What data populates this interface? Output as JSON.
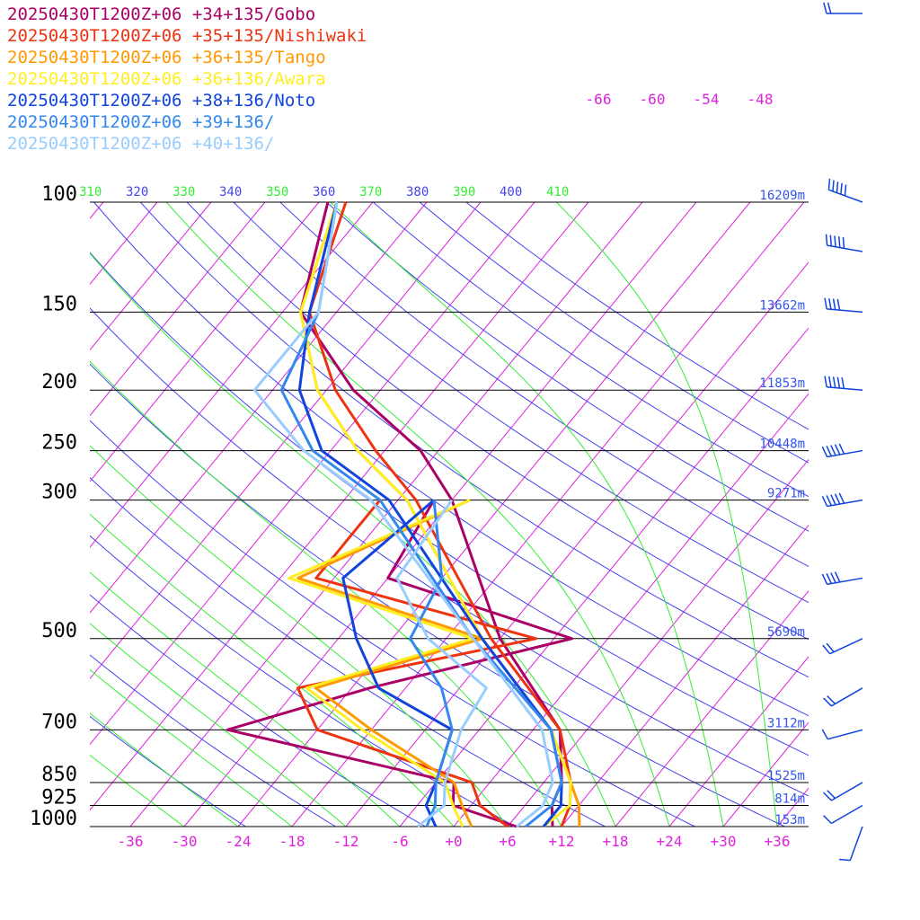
{
  "chart_data": {
    "type": "line",
    "subtype": "skew-T log-P sounding",
    "title": "",
    "xlabel": "",
    "ylabel": "",
    "pressure_levels": [
      100,
      150,
      200,
      250,
      300,
      500,
      700,
      850,
      925,
      1000
    ],
    "pressure_labels": [
      "100",
      "150",
      "200",
      "250",
      "300",
      "500",
      "700",
      "850",
      "925",
      "1000"
    ],
    "height_labels": [
      {
        "p": 100,
        "label": "16209m"
      },
      {
        "p": 150,
        "label": "13662m"
      },
      {
        "p": 200,
        "label": "11853m"
      },
      {
        "p": 250,
        "label": "10448m"
      },
      {
        "p": 300,
        "label": "9271m"
      },
      {
        "p": 500,
        "label": "5690m"
      },
      {
        "p": 700,
        "label": "3112m"
      },
      {
        "p": 850,
        "label": "1525m"
      },
      {
        "p": 925,
        "label": "814m"
      },
      {
        "p": 1000,
        "label": "153m"
      }
    ],
    "temp_ticks": [
      -36,
      -30,
      -24,
      -18,
      -12,
      -6,
      0,
      6,
      12,
      18,
      24,
      30,
      36
    ],
    "temp_tick_labels": [
      "-36",
      "-30",
      "-24",
      "-18",
      "-12",
      "-6",
      "+0",
      "+6",
      "+12",
      "+18",
      "+24",
      "+30",
      "+36"
    ],
    "isotherm_labels_top": [
      "-66",
      "-60",
      "-54",
      "-48"
    ],
    "theta_labels": [
      "310",
      "320",
      "330",
      "340",
      "350",
      "360",
      "370",
      "380",
      "390",
      "400",
      "410"
    ],
    "xlim": [
      -40,
      40
    ],
    "ylim": [
      1000,
      100
    ],
    "colors": {
      "isotherm": "#dd22dd",
      "adiabat": "#4444ee",
      "moist": "#33ee33",
      "isobar": "#000000",
      "height": "#3355ee",
      "wind": "#1144dd"
    },
    "series": [
      {
        "name": "20250430T1200Z+06 +34+135/Gobo",
        "color": "#aa0066",
        "temp": [
          [
            1000,
            11
          ],
          [
            925,
            9
          ],
          [
            850,
            8
          ],
          [
            700,
            3
          ],
          [
            500,
            -12
          ],
          [
            300,
            -30
          ],
          [
            250,
            -38
          ],
          [
            200,
            -51
          ],
          [
            150,
            -64
          ],
          [
            100,
            -71
          ]
        ],
        "dewpoint": [
          [
            1000,
            7
          ],
          [
            925,
            -2
          ],
          [
            850,
            -4
          ],
          [
            700,
            -34
          ],
          [
            600,
            -22
          ],
          [
            500,
            -4
          ],
          [
            400,
            -30
          ],
          [
            300,
            -32
          ]
        ]
      },
      {
        "name": "20250430T1200Z+06 +35+135/Nishiwaki",
        "color": "#ee3311",
        "temp": [
          [
            1000,
            12
          ],
          [
            925,
            11
          ],
          [
            850,
            9
          ],
          [
            700,
            3
          ],
          [
            500,
            -13
          ],
          [
            300,
            -34
          ],
          [
            250,
            -43
          ],
          [
            200,
            -53
          ],
          [
            150,
            -63
          ],
          [
            100,
            -69
          ]
        ],
        "dewpoint": [
          [
            1000,
            6
          ],
          [
            925,
            1
          ],
          [
            850,
            -2
          ],
          [
            700,
            -24
          ],
          [
            600,
            -30
          ],
          [
            500,
            -8
          ],
          [
            400,
            -38
          ],
          [
            300,
            -38
          ]
        ]
      },
      {
        "name": "20250430T1200Z+06 +36+135/Tango",
        "color": "#ff9900",
        "temp": [
          [
            1000,
            14
          ],
          [
            925,
            12
          ],
          [
            850,
            9
          ],
          [
            700,
            2
          ],
          [
            500,
            -14
          ],
          [
            300,
            -35
          ],
          [
            250,
            -45
          ],
          [
            200,
            -55
          ],
          [
            150,
            -64
          ],
          [
            100,
            -70
          ]
        ],
        "dewpoint": [
          [
            1000,
            2
          ],
          [
            925,
            -1
          ],
          [
            850,
            -4
          ],
          [
            700,
            -18
          ],
          [
            600,
            -28
          ],
          [
            500,
            -14
          ],
          [
            400,
            -40
          ],
          [
            300,
            -28
          ]
        ]
      },
      {
        "name": "20250430T1200Z+06 +36+136/Awara",
        "color": "#ffee22",
        "temp": [
          [
            1000,
            10
          ],
          [
            925,
            11
          ],
          [
            850,
            9
          ],
          [
            700,
            2
          ],
          [
            500,
            -14
          ],
          [
            300,
            -35
          ],
          [
            250,
            -45
          ],
          [
            200,
            -55
          ],
          [
            150,
            -64
          ],
          [
            100,
            -70
          ]
        ],
        "dewpoint": [
          [
            1000,
            1
          ],
          [
            925,
            -2
          ],
          [
            850,
            -5
          ],
          [
            700,
            -19
          ],
          [
            600,
            -29
          ],
          [
            500,
            -15
          ],
          [
            400,
            -41
          ],
          [
            300,
            -28
          ]
        ]
      },
      {
        "name": "20250430T1200Z+06 +38+136/Noto",
        "color": "#1144dd",
        "temp": [
          [
            1000,
            10
          ],
          [
            925,
            10
          ],
          [
            850,
            8
          ],
          [
            700,
            2
          ],
          [
            500,
            -14
          ],
          [
            300,
            -37
          ],
          [
            250,
            -49
          ],
          [
            200,
            -57
          ],
          [
            150,
            -63
          ],
          [
            100,
            -70
          ]
        ],
        "dewpoint": [
          [
            1000,
            -2
          ],
          [
            925,
            -5
          ],
          [
            850,
            -6
          ],
          [
            700,
            -9
          ],
          [
            600,
            -21
          ],
          [
            500,
            -28
          ],
          [
            400,
            -35
          ],
          [
            300,
            -32
          ]
        ]
      },
      {
        "name": "20250430T1200Z+06 +39+136/",
        "color": "#3388ee",
        "temp": [
          [
            1000,
            8
          ],
          [
            925,
            9
          ],
          [
            850,
            8
          ],
          [
            700,
            2
          ],
          [
            500,
            -15
          ],
          [
            300,
            -38
          ],
          [
            250,
            -50
          ],
          [
            200,
            -59
          ],
          [
            150,
            -62
          ],
          [
            100,
            -70
          ]
        ],
        "dewpoint": [
          [
            1000,
            -3
          ],
          [
            925,
            -4
          ],
          [
            850,
            -6
          ],
          [
            700,
            -9
          ],
          [
            600,
            -14
          ],
          [
            500,
            -22
          ],
          [
            400,
            -24
          ],
          [
            300,
            -32
          ]
        ]
      },
      {
        "name": "20250430T1200Z+06 +40+136/",
        "color": "#99ccff",
        "temp": [
          [
            1000,
            7
          ],
          [
            925,
            8
          ],
          [
            850,
            7
          ],
          [
            700,
            1
          ],
          [
            500,
            -15
          ],
          [
            300,
            -39
          ],
          [
            250,
            -51
          ],
          [
            200,
            -62
          ],
          [
            150,
            -62
          ],
          [
            100,
            -70
          ]
        ],
        "dewpoint": [
          [
            1000,
            -4
          ],
          [
            925,
            -3
          ],
          [
            850,
            -5
          ],
          [
            700,
            -8
          ],
          [
            600,
            -9
          ],
          [
            500,
            -20
          ],
          [
            400,
            -29
          ],
          [
            300,
            -30
          ]
        ]
      }
    ],
    "wind_barbs": [
      {
        "p": 1000,
        "dir": 200,
        "speed_kt": 10
      },
      {
        "p": 925,
        "dir": 240,
        "speed_kt": 10
      },
      {
        "p": 850,
        "dir": 240,
        "speed_kt": 20
      },
      {
        "p": 700,
        "dir": 255,
        "speed_kt": 15
      },
      {
        "p": 600,
        "dir": 240,
        "speed_kt": 20
      },
      {
        "p": 500,
        "dir": 245,
        "speed_kt": 20
      },
      {
        "p": 400,
        "dir": 260,
        "speed_kt": 40
      },
      {
        "p": 300,
        "dir": 260,
        "speed_kt": 70
      },
      {
        "p": 250,
        "dir": 260,
        "speed_kt": 55
      },
      {
        "p": 200,
        "dir": 275,
        "speed_kt": 60
      },
      {
        "p": 150,
        "dir": 275,
        "speed_kt": 45
      },
      {
        "p": 120,
        "dir": 280,
        "speed_kt": 60
      },
      {
        "p": 100,
        "dir": 290,
        "speed_kt": 55
      },
      {
        "p": 70,
        "dir": 270,
        "speed_kt": 20
      }
    ]
  }
}
